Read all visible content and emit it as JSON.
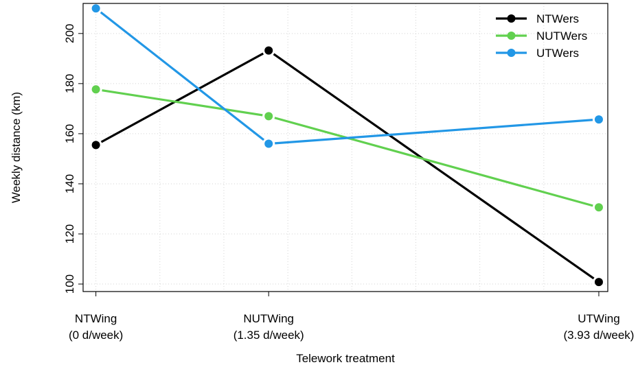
{
  "chart_data": {
    "type": "line",
    "title": "",
    "xlabel": "Telework treatment",
    "ylabel": "Weekly distance (km)",
    "x": [
      0,
      1.35,
      3.93
    ],
    "x_tick_labels": [
      [
        "NTWing",
        "(0 d/week)"
      ],
      [
        "NUTWing",
        "(1.35 d/week)"
      ],
      [
        "UTWing",
        "(3.93 d/week)"
      ]
    ],
    "xlim": [
      -0.1,
      4.0
    ],
    "ylim": [
      97,
      212
    ],
    "yticks": [
      100,
      120,
      140,
      160,
      180,
      200
    ],
    "grid": true,
    "legend_position": "top-right",
    "series": [
      {
        "name": "NTWers",
        "color": "#000000",
        "values": [
          155.5,
          193.2,
          100.8
        ]
      },
      {
        "name": "NUTWers",
        "color": "#61D04F",
        "values": [
          177.7,
          167.0,
          130.6
        ]
      },
      {
        "name": "UTWers",
        "color": "#2297E6",
        "values": [
          210.0,
          156.0,
          165.7
        ]
      }
    ]
  }
}
